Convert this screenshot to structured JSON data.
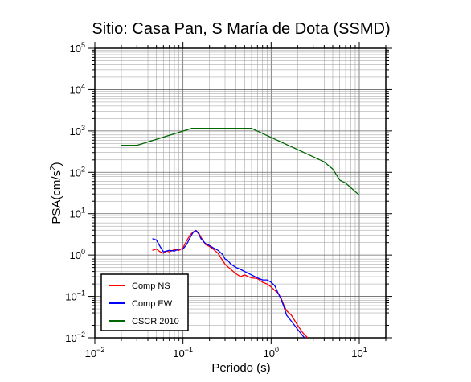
{
  "chart_data": {
    "type": "line",
    "title": "Sitio: Casa Pan, S María de Dota (SSMD)",
    "xlabel": "Periodo (s)",
    "ylabel_main": "PSA(cm/s",
    "ylabel_sup": "2",
    "ylabel_tail": ")",
    "xscale": "log",
    "yscale": "log",
    "xlim": [
      0.01,
      20
    ],
    "ylim": [
      0.01,
      100000
    ],
    "grid": true,
    "legend_position": "bottom-left",
    "x_ticks": [
      {
        "base": "10",
        "exp": "−2",
        "value": 0.01
      },
      {
        "base": "10",
        "exp": "−1",
        "value": 0.1
      },
      {
        "base": "10",
        "exp": "0",
        "value": 1
      },
      {
        "base": "10",
        "exp": "1",
        "value": 10
      }
    ],
    "y_ticks": [
      {
        "base": "10",
        "exp": "−2",
        "value": 0.01
      },
      {
        "base": "10",
        "exp": "−1",
        "value": 0.1
      },
      {
        "base": "10",
        "exp": "0",
        "value": 1
      },
      {
        "base": "10",
        "exp": "1",
        "value": 10
      },
      {
        "base": "10",
        "exp": "2",
        "value": 100
      },
      {
        "base": "10",
        "exp": "3",
        "value": 1000
      },
      {
        "base": "10",
        "exp": "4",
        "value": 10000
      },
      {
        "base": "10",
        "exp": "5",
        "value": 100000
      }
    ],
    "series": [
      {
        "name": "Comp NS",
        "color": "#ff0000",
        "points": [
          [
            0.045,
            1.3
          ],
          [
            0.05,
            1.4
          ],
          [
            0.055,
            1.2
          ],
          [
            0.06,
            1.1
          ],
          [
            0.065,
            1.25
          ],
          [
            0.07,
            1.2
          ],
          [
            0.08,
            1.35
          ],
          [
            0.09,
            1.3
          ],
          [
            0.1,
            1.5
          ],
          [
            0.11,
            2.2
          ],
          [
            0.12,
            3.0
          ],
          [
            0.13,
            3.6
          ],
          [
            0.14,
            3.9
          ],
          [
            0.15,
            3.5
          ],
          [
            0.16,
            2.7
          ],
          [
            0.18,
            1.8
          ],
          [
            0.2,
            1.6
          ],
          [
            0.22,
            1.4
          ],
          [
            0.25,
            1.1
          ],
          [
            0.28,
            0.75
          ],
          [
            0.3,
            0.6
          ],
          [
            0.35,
            0.45
          ],
          [
            0.4,
            0.35
          ],
          [
            0.45,
            0.3
          ],
          [
            0.5,
            0.33
          ],
          [
            0.55,
            0.3
          ],
          [
            0.6,
            0.28
          ],
          [
            0.7,
            0.27
          ],
          [
            0.8,
            0.22
          ],
          [
            0.9,
            0.2
          ],
          [
            1.0,
            0.17
          ],
          [
            1.1,
            0.14
          ],
          [
            1.2,
            0.12
          ],
          [
            1.3,
            0.09
          ],
          [
            1.4,
            0.06
          ],
          [
            1.5,
            0.045
          ],
          [
            1.7,
            0.035
          ],
          [
            2.0,
            0.02
          ],
          [
            2.3,
            0.013
          ],
          [
            2.6,
            0.01
          ]
        ]
      },
      {
        "name": "Comp EW",
        "color": "#0000ff",
        "points": [
          [
            0.045,
            2.5
          ],
          [
            0.05,
            2.3
          ],
          [
            0.055,
            1.6
          ],
          [
            0.06,
            1.2
          ],
          [
            0.07,
            1.3
          ],
          [
            0.08,
            1.25
          ],
          [
            0.09,
            1.4
          ],
          [
            0.1,
            1.4
          ],
          [
            0.11,
            1.8
          ],
          [
            0.12,
            2.6
          ],
          [
            0.13,
            3.5
          ],
          [
            0.14,
            3.9
          ],
          [
            0.15,
            3.3
          ],
          [
            0.16,
            2.5
          ],
          [
            0.18,
            1.9
          ],
          [
            0.2,
            1.7
          ],
          [
            0.22,
            1.5
          ],
          [
            0.25,
            1.3
          ],
          [
            0.28,
            1.05
          ],
          [
            0.3,
            0.8
          ],
          [
            0.32,
            0.75
          ],
          [
            0.35,
            0.6
          ],
          [
            0.4,
            0.5
          ],
          [
            0.45,
            0.45
          ],
          [
            0.5,
            0.4
          ],
          [
            0.6,
            0.33
          ],
          [
            0.7,
            0.28
          ],
          [
            0.8,
            0.25
          ],
          [
            0.9,
            0.25
          ],
          [
            1.0,
            0.22
          ],
          [
            1.1,
            0.18
          ],
          [
            1.2,
            0.12
          ],
          [
            1.3,
            0.085
          ],
          [
            1.4,
            0.055
          ],
          [
            1.5,
            0.035
          ],
          [
            1.7,
            0.025
          ],
          [
            2.0,
            0.016
          ],
          [
            2.3,
            0.011
          ],
          [
            2.4,
            0.01
          ]
        ]
      },
      {
        "name": "CSCR 2010",
        "color": "#006600",
        "points": [
          [
            0.02,
            450
          ],
          [
            0.03,
            450
          ],
          [
            0.125,
            1150
          ],
          [
            0.6,
            1150
          ],
          [
            4.0,
            180
          ],
          [
            5.0,
            120
          ],
          [
            6.0,
            65
          ],
          [
            7.0,
            55
          ],
          [
            10.0,
            28
          ]
        ]
      }
    ]
  }
}
